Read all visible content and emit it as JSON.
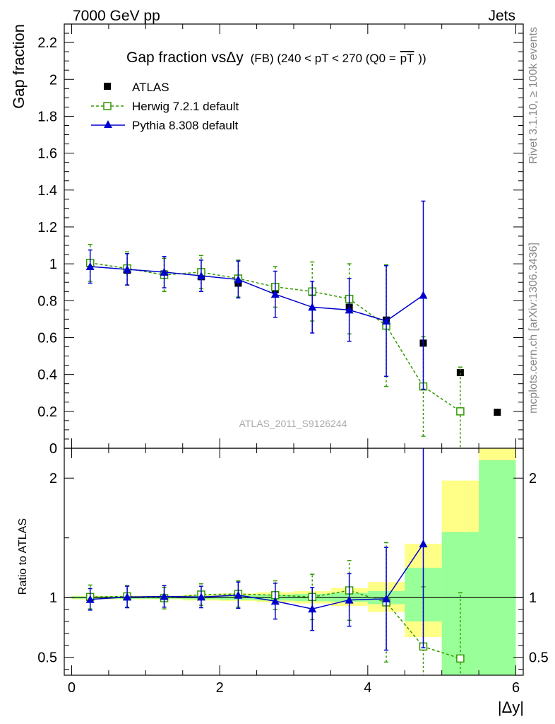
{
  "header": {
    "left": "7000 GeV pp",
    "right": "Jets"
  },
  "side": {
    "top": "Rivet 3.1.10, ≥ 100k events",
    "bottom": "mcplots.cern.ch [arXiv:1306.3436]"
  },
  "chart_data": [
    {
      "type": "scatter",
      "title": "Gap fraction vsΔy",
      "subtitle": "(FB) (240 < pT < 270 (Q0 =",
      "subtitle_over": "pT",
      "subtitle_end": "))",
      "ylabel": "Gap fraction",
      "xlabel": "|Δy|",
      "watermark": "ATLAS_2011_S9126244",
      "xlim": [
        -0.1,
        6.1
      ],
      "ylim": [
        0,
        2.3
      ],
      "x_ticks": [
        "0",
        "2",
        "4",
        "6"
      ],
      "y_ticks": [
        "0",
        "0.2",
        "0.4",
        "0.6",
        "0.8",
        "1",
        "1.2",
        "1.4",
        "1.6",
        "1.8",
        "2",
        "2.2"
      ],
      "series": [
        {
          "name": "ATLAS",
          "color": "#000000",
          "marker": "filled-square",
          "x": [
            0.25,
            0.75,
            1.25,
            1.75,
            2.25,
            2.75,
            3.25,
            3.75,
            4.25,
            4.75,
            5.25,
            5.75
          ],
          "y": [
            1.0,
            0.965,
            0.945,
            0.93,
            0.895,
            0.86,
            0.845,
            0.765,
            0.695,
            0.57,
            0.41,
            0.195
          ]
        },
        {
          "name": "Herwig 7.2.1 default",
          "color": "#339900",
          "marker": "open-square",
          "line": "dashed",
          "x": [
            0.25,
            0.75,
            1.25,
            1.75,
            2.25,
            2.75,
            3.25,
            3.75,
            4.25,
            4.75,
            5.25
          ],
          "y": [
            1.005,
            0.975,
            0.94,
            0.955,
            0.92,
            0.875,
            0.85,
            0.81,
            0.665,
            0.335,
            0.2
          ],
          "err": [
            0.1,
            0.09,
            0.09,
            0.09,
            0.1,
            0.11,
            0.16,
            0.19,
            0.33,
            0.27,
            0.24
          ]
        },
        {
          "name": "Pythia 8.308 default",
          "color": "#0000cc",
          "marker": "filled-triangle",
          "line": "solid",
          "x": [
            0.25,
            0.75,
            1.25,
            1.75,
            2.25,
            2.75,
            3.25,
            3.75,
            4.25,
            4.75
          ],
          "y": [
            0.985,
            0.97,
            0.955,
            0.935,
            0.915,
            0.835,
            0.765,
            0.75,
            0.69,
            0.83
          ],
          "err": [
            0.09,
            0.085,
            0.085,
            0.085,
            0.1,
            0.125,
            0.14,
            0.17,
            0.3,
            0.51
          ]
        }
      ]
    },
    {
      "type": "scatter",
      "ylabel": "Ratio to ATLAS",
      "xlim": [
        -0.1,
        6.1
      ],
      "ylim": [
        0.35,
        2.25
      ],
      "y_ticks": [
        "0.5",
        "1",
        "2"
      ],
      "bands": {
        "x_edges": [
          0.0,
          0.5,
          1.0,
          1.5,
          2.0,
          2.5,
          3.0,
          3.5,
          4.0,
          4.5,
          5.0,
          5.5,
          6.0
        ],
        "inner_color": "#99ff99",
        "outer_color": "#ffff88",
        "inner": [
          [
            0.99,
            1.01
          ],
          [
            0.99,
            1.01
          ],
          [
            0.99,
            1.01
          ],
          [
            0.985,
            1.015
          ],
          [
            0.98,
            1.02
          ],
          [
            0.975,
            1.025
          ],
          [
            0.97,
            1.03
          ],
          [
            0.965,
            1.04
          ],
          [
            0.945,
            1.055
          ],
          [
            0.8,
            1.25
          ],
          [
            0.35,
            1.55
          ],
          [
            0.35,
            2.15
          ]
        ],
        "outer": [
          [
            0.985,
            1.015
          ],
          [
            0.985,
            1.015
          ],
          [
            0.985,
            1.015
          ],
          [
            0.975,
            1.025
          ],
          [
            0.97,
            1.035
          ],
          [
            0.96,
            1.045
          ],
          [
            0.95,
            1.055
          ],
          [
            0.93,
            1.08
          ],
          [
            0.88,
            1.13
          ],
          [
            0.67,
            1.45
          ],
          [
            0.35,
            1.98
          ],
          [
            0.35,
            2.25
          ]
        ]
      },
      "series": [
        {
          "name": "Herwig 7.2.1 default",
          "color": "#339900",
          "marker": "open-square",
          "line": "dashed",
          "x": [
            0.25,
            0.75,
            1.25,
            1.75,
            2.25,
            2.75,
            3.25,
            3.75,
            4.25,
            4.75,
            5.25
          ],
          "y": [
            1.005,
            1.01,
            0.995,
            1.025,
            1.03,
            1.02,
            1.005,
            1.06,
            0.96,
            0.59,
            0.49
          ],
          "err": [
            0.1,
            0.09,
            0.09,
            0.09,
            0.11,
            0.12,
            0.19,
            0.25,
            0.5,
            0.5,
            0.55
          ]
        },
        {
          "name": "Pythia 8.308 default",
          "color": "#0000cc",
          "marker": "filled-triangle",
          "line": "solid",
          "x": [
            0.25,
            0.75,
            1.25,
            1.75,
            2.25,
            2.75,
            3.25,
            3.75,
            4.25,
            4.75
          ],
          "y": [
            0.985,
            1.005,
            1.01,
            1.005,
            1.02,
            0.97,
            0.905,
            0.98,
            0.99,
            1.45
          ],
          "err": [
            0.09,
            0.09,
            0.09,
            0.09,
            0.11,
            0.15,
            0.18,
            0.22,
            0.43,
            0.87
          ]
        }
      ]
    }
  ]
}
